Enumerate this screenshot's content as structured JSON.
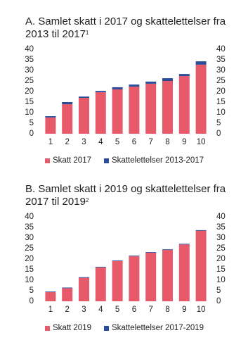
{
  "chart_data": [
    {
      "type": "bar",
      "stacked": true,
      "title": "A. Samlet skatt i 2017 og skattelettelser fra 2013 til 2017",
      "title_marker": "1",
      "categories": [
        "1",
        "2",
        "3",
        "4",
        "5",
        "6",
        "7",
        "8",
        "9",
        "10"
      ],
      "series": [
        {
          "name": "Skatt 2017",
          "color": "#e8596a",
          "values": [
            7.7,
            14,
            17,
            19.7,
            21,
            22.3,
            23.7,
            25,
            27.3,
            32.7
          ]
        },
        {
          "name": "Skattelettelser 2013-2017",
          "color": "#2b4c9b",
          "values": [
            0.6,
            1.0,
            0.6,
            0.6,
            1.0,
            1.0,
            1.0,
            1.3,
            1.0,
            1.6
          ]
        }
      ],
      "ylim": [
        0,
        40
      ],
      "yticks": [
        0,
        5,
        10,
        15,
        20,
        25,
        30,
        35,
        40
      ],
      "y2lim": [
        0,
        40
      ],
      "y2ticks": [
        0,
        5,
        10,
        15,
        20,
        25,
        30,
        35,
        40
      ],
      "grid": false
    },
    {
      "type": "bar",
      "stacked": true,
      "title": "B. Samlet skatt i 2019 og skattelettelser fra 2017 til 2019",
      "title_marker": "2",
      "categories": [
        "1",
        "2",
        "3",
        "4",
        "5",
        "6",
        "7",
        "8",
        "9",
        "10"
      ],
      "series": [
        {
          "name": "Skatt 2019",
          "color": "#e8596a",
          "values": [
            4.3,
            6.2,
            11.1,
            16,
            19,
            21.3,
            23,
            24.3,
            26.9,
            33.4
          ]
        },
        {
          "name": "Skattelettelser 2017-2019",
          "color": "#2b4c9b",
          "values": [
            0.3,
            0.3,
            0.3,
            0.3,
            0.3,
            0.3,
            0.3,
            0.3,
            0.3,
            0.3
          ]
        }
      ],
      "ylim": [
        0,
        40
      ],
      "yticks": [
        0,
        5,
        10,
        15,
        20,
        25,
        30,
        35,
        40
      ],
      "y2lim": [
        0,
        40
      ],
      "y2ticks": [
        0,
        5,
        10,
        15,
        20,
        25,
        30,
        35,
        40
      ],
      "grid": false
    }
  ]
}
